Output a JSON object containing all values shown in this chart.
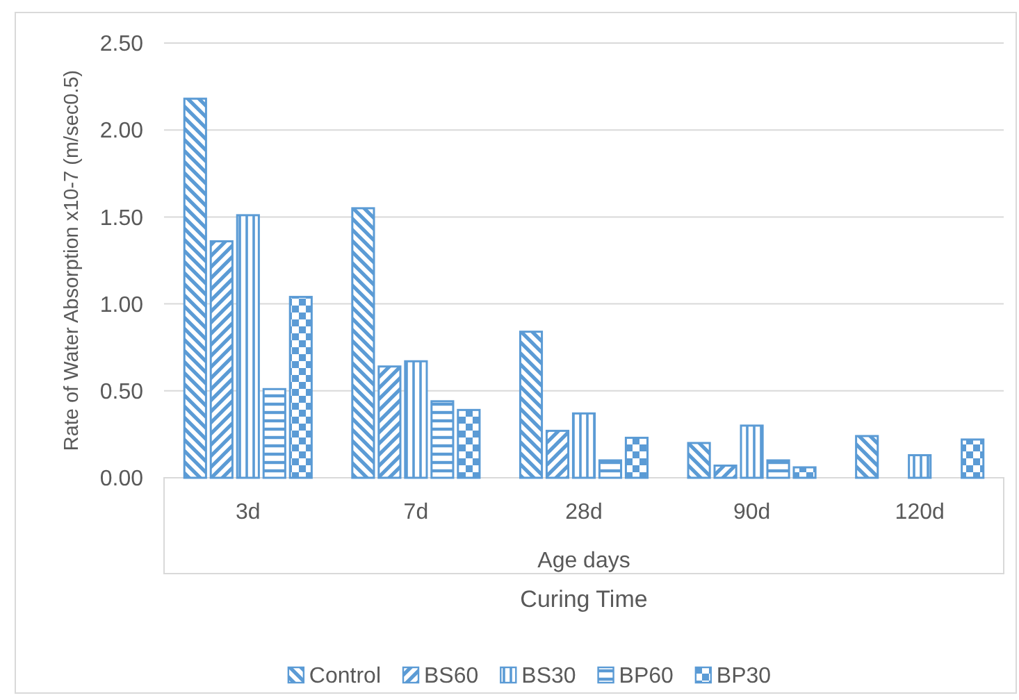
{
  "chart_data": {
    "type": "bar",
    "ylabel": "Rate of Water Absorption x10-7 (m/sec0.5)",
    "xlabel": "Curing Time",
    "annotations": [
      "Age days"
    ],
    "categories": [
      "3d",
      "7d",
      "28d",
      "90d",
      "120d"
    ],
    "series": [
      {
        "name": "Control",
        "color": "#5b9bd5",
        "values": [
          2.18,
          1.55,
          0.84,
          0.2,
          0.24
        ]
      },
      {
        "name": "BS60",
        "color": "#5b9bd5",
        "values": [
          1.36,
          0.64,
          0.27,
          0.07,
          null
        ]
      },
      {
        "name": "BS30",
        "color": "#5b9bd5",
        "values": [
          1.51,
          0.67,
          0.37,
          0.3,
          0.13
        ]
      },
      {
        "name": "BP60",
        "color": "#5b9bd5",
        "values": [
          0.51,
          0.44,
          0.1,
          0.1,
          null
        ]
      },
      {
        "name": "BP30",
        "color": "#5b9bd5",
        "values": [
          1.04,
          0.39,
          0.23,
          0.06,
          0.22
        ]
      }
    ],
    "ylim": [
      0,
      2.5
    ],
    "yticks": [
      {
        "value": 0,
        "label": "0.00"
      },
      {
        "value": 0.5,
        "label": "0.50"
      },
      {
        "value": 1,
        "label": "1.00"
      },
      {
        "value": 1.5,
        "label": "1.50"
      },
      {
        "value": 2,
        "label": "2.00"
      },
      {
        "value": 2.5,
        "label": "2.50"
      }
    ],
    "grid": "y",
    "legend": "bottom"
  }
}
